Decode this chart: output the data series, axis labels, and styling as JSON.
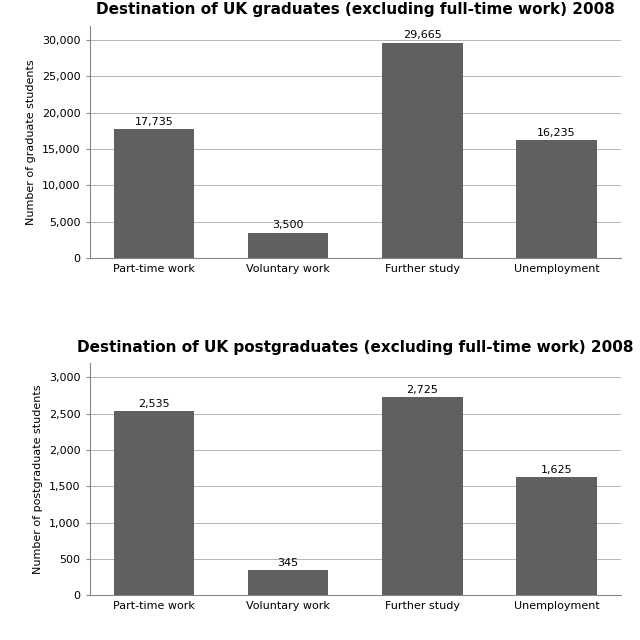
{
  "grad_title": "Destination of UK graduates (excluding full-time work) 2008",
  "postgrad_title": "Destination of UK postgraduates (excluding full-time work) 2008",
  "categories": [
    "Part-time work",
    "Voluntary work",
    "Further study",
    "Unemployment"
  ],
  "grad_values": [
    17735,
    3500,
    29665,
    16235
  ],
  "postgrad_values": [
    2535,
    345,
    2725,
    1625
  ],
  "grad_ylabel": "Number of graduate students",
  "postgrad_ylabel": "Number of postgraduate students",
  "bar_color": "#606060",
  "grad_ylim": [
    0,
    32000
  ],
  "postgrad_ylim": [
    0,
    3200
  ],
  "grad_yticks": [
    0,
    5000,
    10000,
    15000,
    20000,
    25000,
    30000
  ],
  "postgrad_yticks": [
    0,
    500,
    1000,
    1500,
    2000,
    2500,
    3000
  ],
  "label_fontsize": 8,
  "title_fontsize": 11,
  "ylabel_fontsize": 8,
  "tick_fontsize": 8,
  "bar_width": 0.6,
  "fig_bg": "#ffffff",
  "plot_bg": "#ffffff",
  "grid_color": "#aaaaaa",
  "spine_color": "#888888"
}
